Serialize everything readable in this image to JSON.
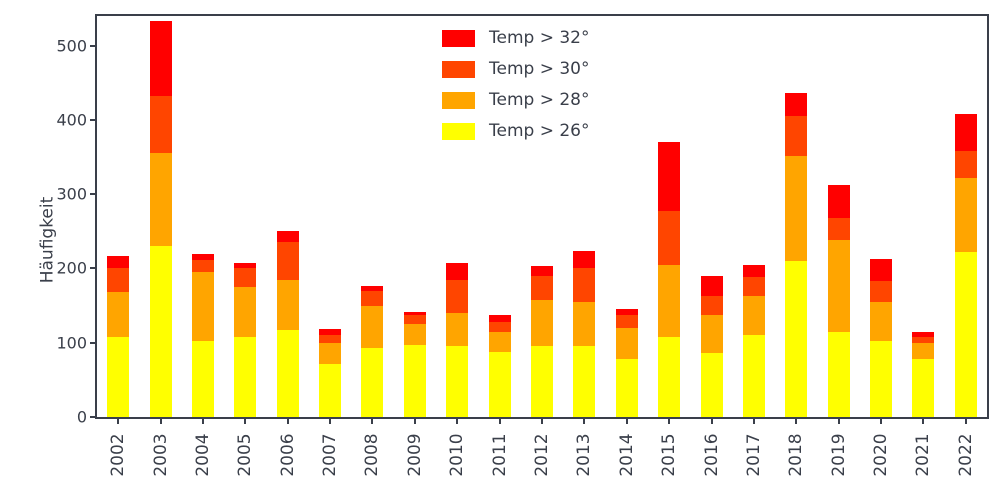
{
  "figure": {
    "ylabel": "Häufigkeit",
    "axis_color": "#3a3f4a",
    "text_color": "#3a3f4a",
    "background": "#ffffff"
  },
  "chart_data": {
    "type": "bar",
    "stacked": true,
    "title": "",
    "xlabel": "",
    "ylabel": "Häufigkeit",
    "grid": false,
    "legend_position": "upper center inside",
    "categories": [
      "2002",
      "2003",
      "2004",
      "2005",
      "2006",
      "2007",
      "2008",
      "2009",
      "2010",
      "2011",
      "2012",
      "2013",
      "2014",
      "2015",
      "2016",
      "2017",
      "2018",
      "2019",
      "2020",
      "2021",
      "2022"
    ],
    "yticks": [
      0,
      100,
      200,
      300,
      400,
      500
    ],
    "ylim": [
      0,
      540
    ],
    "series": [
      {
        "name": "Temp > 32°",
        "color": "#ff0000",
        "values": [
          17,
          101,
          7,
          7,
          16,
          8,
          7,
          4,
          22,
          9,
          14,
          24,
          7,
          92,
          27,
          17,
          31,
          44,
          30,
          6,
          50
        ]
      },
      {
        "name": "Temp > 30°",
        "color": "#ff4500",
        "values": [
          32,
          77,
          17,
          25,
          50,
          10,
          20,
          13,
          45,
          13,
          32,
          45,
          18,
          73,
          25,
          25,
          53,
          30,
          28,
          8,
          36
        ]
      },
      {
        "name": "Temp > 28°",
        "color": "#ffa500",
        "values": [
          60,
          125,
          92,
          67,
          68,
          28,
          57,
          28,
          45,
          28,
          63,
          60,
          42,
          97,
          52,
          53,
          142,
          123,
          52,
          22,
          100
        ]
      },
      {
        "name": "Temp > 26°",
        "color": "#ffff00",
        "values": [
          108,
          230,
          103,
          108,
          117,
          72,
          93,
          97,
          95,
          87,
          95,
          95,
          78,
          108,
          86,
          110,
          210,
          115,
          103,
          78,
          222
        ]
      }
    ]
  }
}
